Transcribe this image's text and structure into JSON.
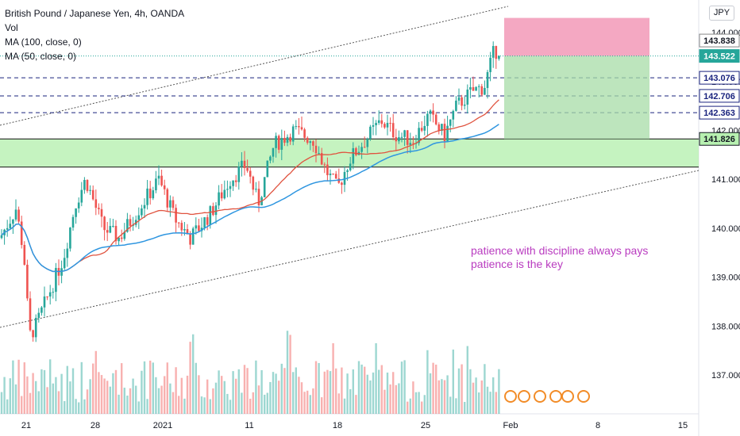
{
  "header": {
    "symbol": "British Pound / Japanese Yen, 4h, OANDA",
    "vol_label": "Vol",
    "ma100_label": "MA (100, close, 0)",
    "ma50_label": "MA (50, close, 0)",
    "currency": "JPY"
  },
  "annotation": {
    "line1": "patience with discipline always pays",
    "line2": "patience is the key"
  },
  "colors": {
    "up": "#26a69a",
    "down": "#ef5350",
    "ma50": "#e0533f",
    "ma100": "#2f96e0",
    "zone": "#b7f0b0",
    "target": "#a7dca7",
    "stop": "#f3a3bf",
    "annot": "#b93cc0",
    "level_line": "#1a237e"
  },
  "chart_data": {
    "type": "candlestick",
    "title": "British Pound / Japanese Yen, 4h, OANDA",
    "x_ticks": [
      "21",
      "28",
      "2021",
      "11",
      "18",
      "25",
      "Feb",
      "8",
      "15"
    ],
    "y_ticks": [
      137.0,
      138.0,
      139.0,
      140.0,
      141.0,
      142.0,
      143.0,
      144.0
    ],
    "ylim": [
      136.45,
      144.85
    ],
    "price_labels": [
      {
        "value": 143.838,
        "text": "143.838",
        "style": "current"
      },
      {
        "value": 143.522,
        "text": "143.522",
        "style": "green"
      },
      {
        "value": 143.076,
        "text": "143.076",
        "style": "level"
      },
      {
        "value": 142.706,
        "text": "142.706",
        "style": "level"
      },
      {
        "value": 142.363,
        "text": "142.363",
        "style": "level"
      },
      {
        "value": 141.826,
        "text": "141.826",
        "style": "zone"
      }
    ],
    "horizontal_levels": [
      143.076,
      142.706,
      142.363
    ],
    "support_zone": {
      "top": 141.826,
      "bottom": 141.25
    },
    "position": {
      "entry": 143.522,
      "stop": 144.3,
      "target": 141.826
    },
    "moving_averages": [
      "MA (50, close, 0)",
      "MA (100, close, 0)"
    ],
    "volume": "Vol",
    "grid": false
  }
}
